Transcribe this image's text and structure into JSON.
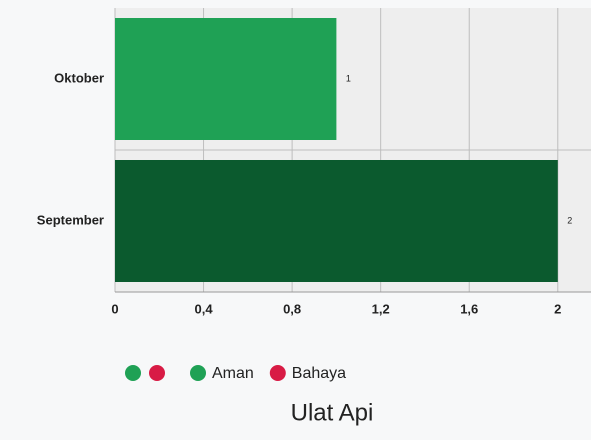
{
  "chart_data": {
    "type": "bar",
    "orientation": "horizontal",
    "title": "Ulat Api",
    "categories": [
      "Oktober",
      "September"
    ],
    "values": [
      1,
      2
    ],
    "colors": [
      "#1fa155",
      "#0b5a2e"
    ],
    "xlim": [
      0,
      2.15
    ],
    "xticks": [
      0,
      {
        "value": 0.4,
        "label": "0,4"
      },
      {
        "value": 0.8,
        "label": "0,8"
      },
      {
        "value": 1.2,
        "label": "1,2"
      },
      {
        "value": 1.6,
        "label": "1,6"
      },
      2
    ],
    "grid": true,
    "legend": [
      {
        "name": "Aman",
        "color": "#1fa155"
      },
      {
        "name": "Bahaya",
        "color": "#d81b45"
      }
    ]
  }
}
